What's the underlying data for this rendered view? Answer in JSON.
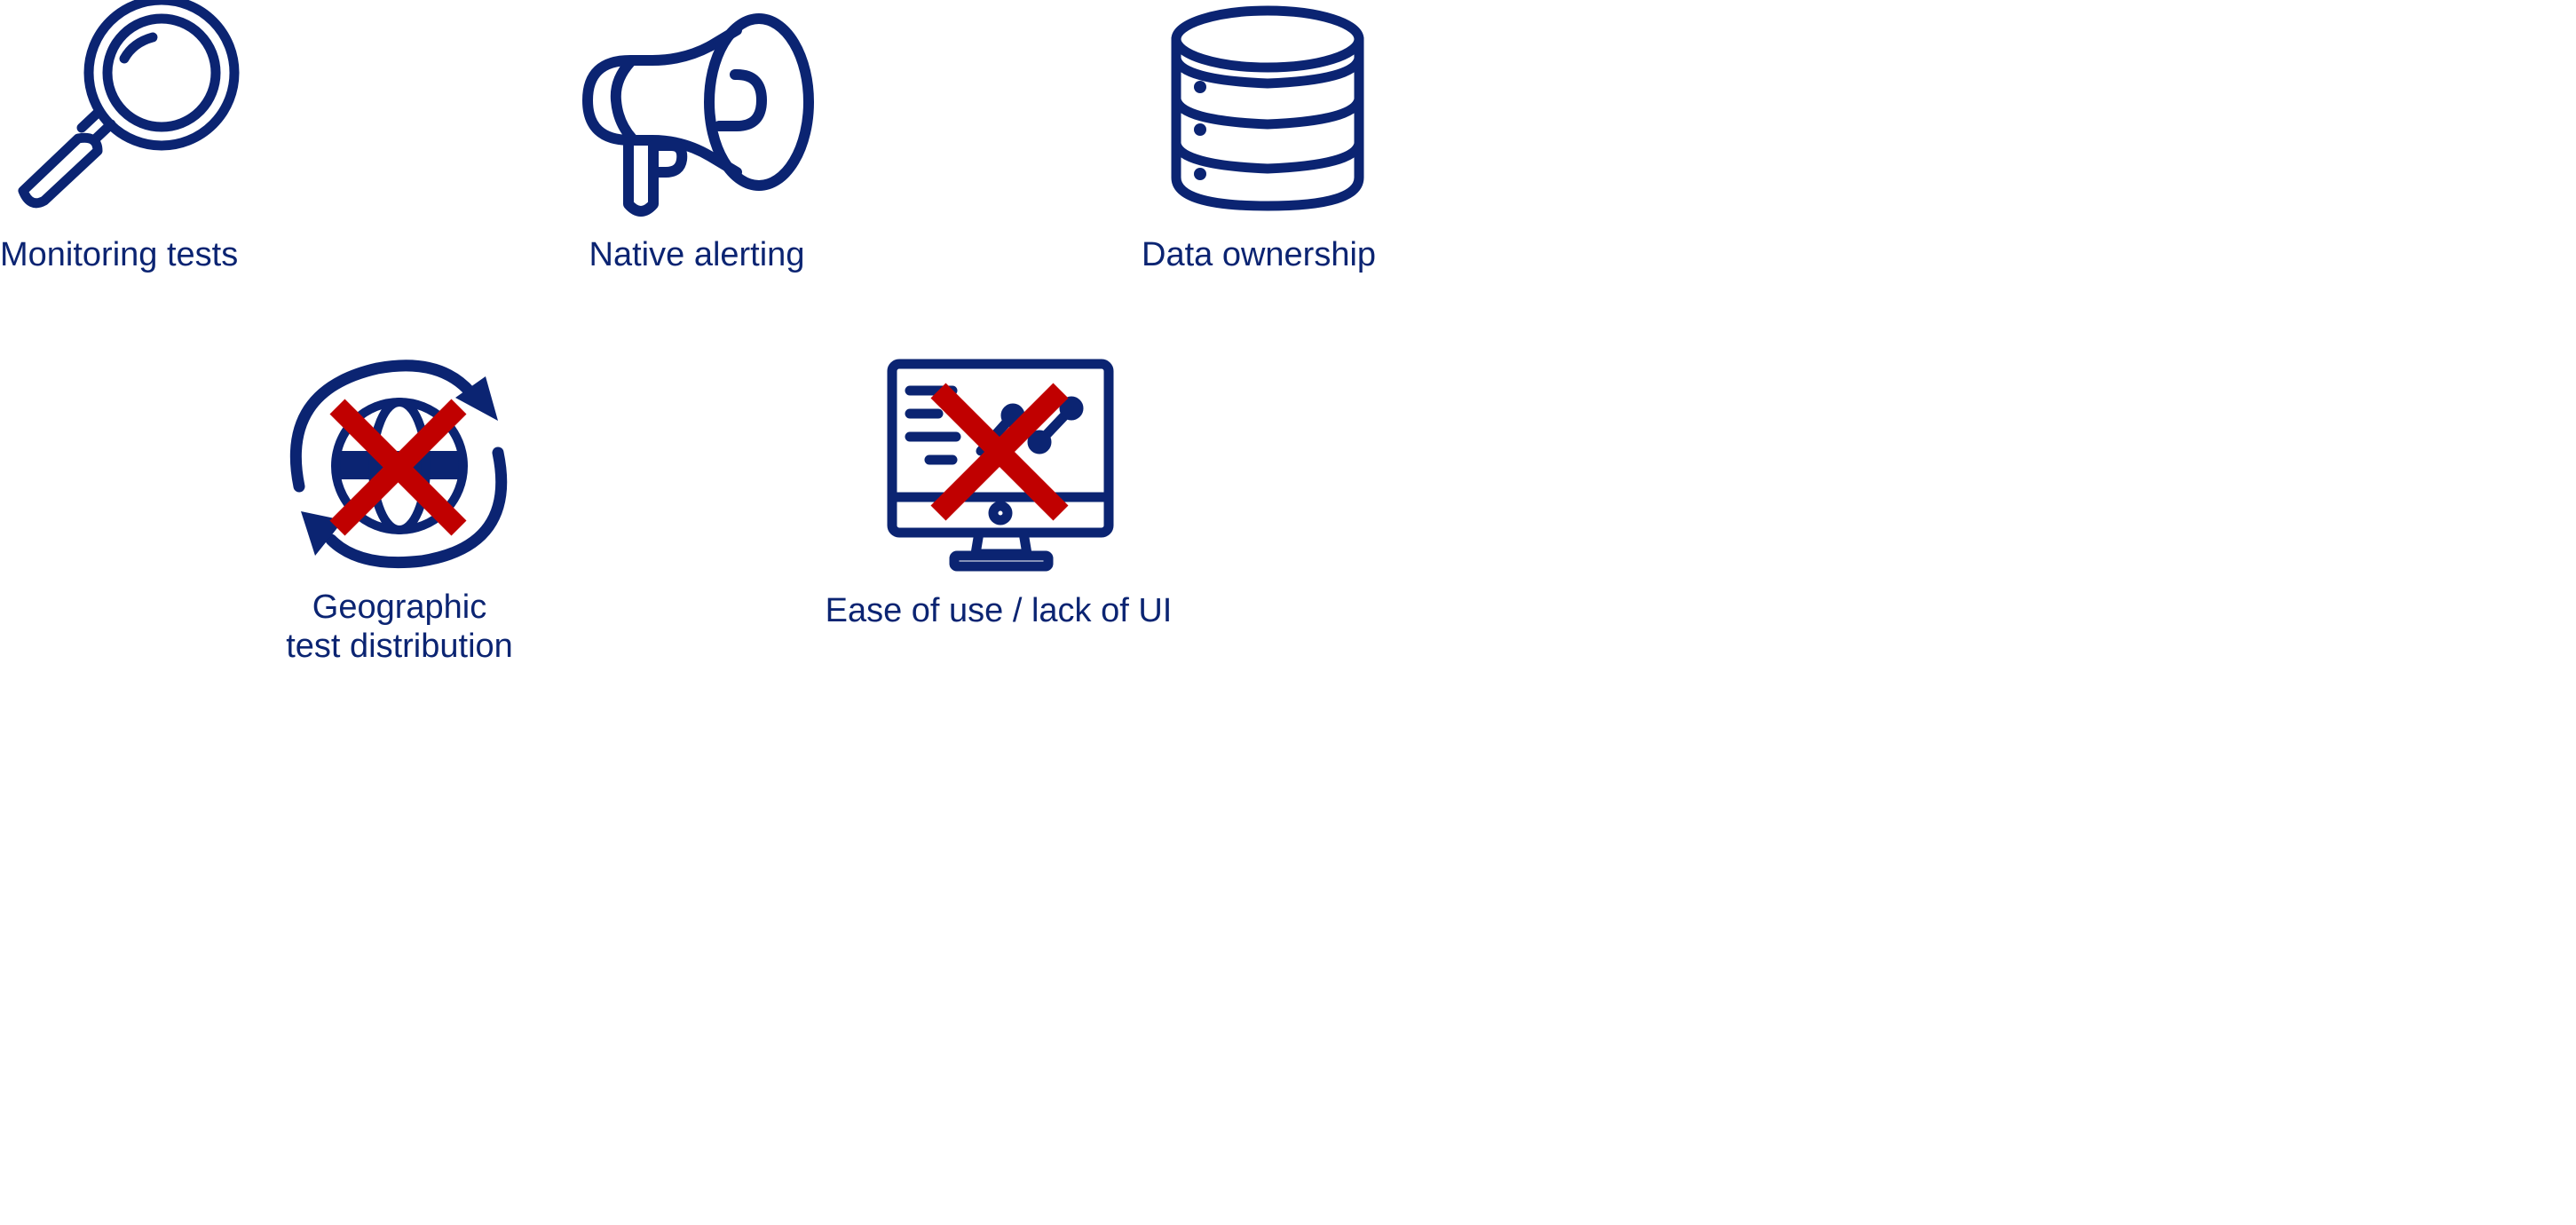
{
  "colors": {
    "icon_stroke": "#0b2472",
    "label_text": "#0b2472",
    "cross": "#c00000",
    "background": "#ffffff"
  },
  "features": [
    {
      "label": "Monitoring tests",
      "icon": "magnifying-glass-icon",
      "crossed_out": false
    },
    {
      "label": "Native alerting",
      "icon": "megaphone-icon",
      "crossed_out": false
    },
    {
      "label": "Data ownership",
      "icon": "database-icon",
      "crossed_out": false
    },
    {
      "label_line1": "Geographic",
      "label_line2": "test distribution",
      "icon": "globe-sync-icon",
      "crossed_out": true
    },
    {
      "label": "Ease of use / lack of UI",
      "icon": "monitor-chart-icon",
      "crossed_out": true
    }
  ]
}
